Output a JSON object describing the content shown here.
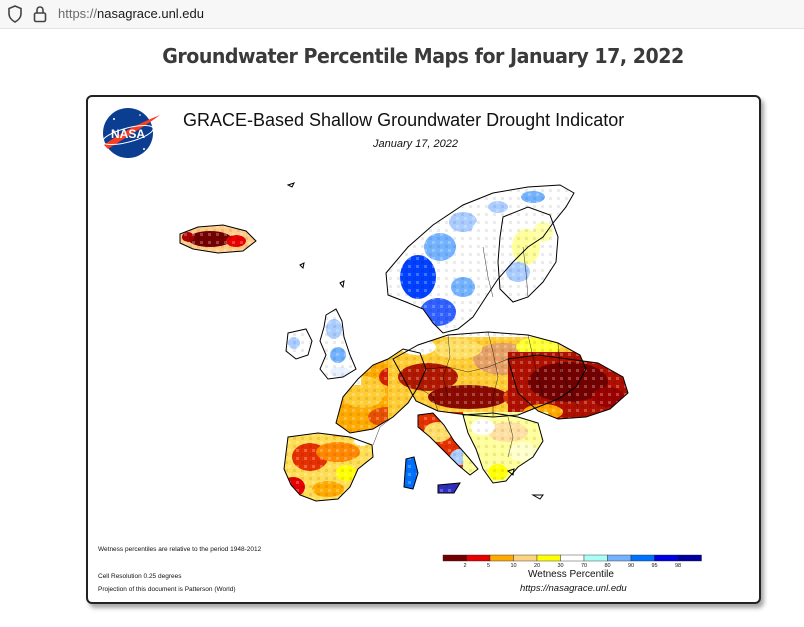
{
  "browser": {
    "url_scheme": "https://",
    "url_host": "nasagrace.unl.edu",
    "icons": [
      "shield-icon",
      "lock-icon"
    ]
  },
  "page": {
    "title": "Groundwater Percentile Maps for January 17, 2022"
  },
  "map": {
    "logo_text": "NASA",
    "title": "GRACE-Based Shallow Groundwater Drought Indicator",
    "date": "January 17, 2022",
    "note_period": "Wetness percentiles are relative to the period 1948-2012",
    "note_resolution": "Cell Resolution 0.25 degrees",
    "note_projection": "Projection of this document is Patterson (World)",
    "legend": {
      "title": "Wetness Percentile",
      "url": "https://nasagrace.unl.edu",
      "ticks": [
        "2",
        "5",
        "10",
        "20",
        "30",
        "70",
        "80",
        "90",
        "95",
        "98"
      ],
      "colors": [
        "#730000",
        "#e60000",
        "#ffaa00",
        "#fcd37f",
        "#ffff00",
        "#ffffff",
        "#aafff5",
        "#73b2ff",
        "#0070ff",
        "#0000e6",
        "#0000a0"
      ]
    }
  }
}
